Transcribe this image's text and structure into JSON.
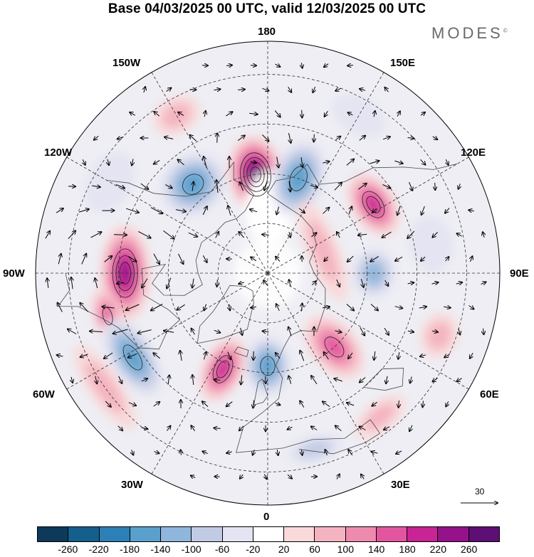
{
  "title": "Base 04/03/2025 00 UTC, valid 12/03/2025 00 UTC",
  "brand": "MODES",
  "brand_mark": "©",
  "longitude_labels": {
    "lon_180": "180",
    "lon_150w": "150W",
    "lon_150e": "150E",
    "lon_120w": "120W",
    "lon_120e": "120E",
    "lon_90w": "90W",
    "lon_90e": "90E",
    "lon_60w": "60W",
    "lon_60e": "60E",
    "lon_30w": "30W",
    "lon_30e": "30E",
    "lon_0": "0"
  },
  "reference_vector_label": "30",
  "colorbar": {
    "colors": [
      "#0d3a5a",
      "#155f8d",
      "#2c80b7",
      "#5aa0cc",
      "#8fb6dc",
      "#c1cbe4",
      "#e4e4f2",
      "#ffffff",
      "#f9d9d9",
      "#f4b3c0",
      "#ef8aaf",
      "#e4559f",
      "#c82495",
      "#96128a",
      "#5d0f75"
    ],
    "ticks": [
      "-260",
      "-220",
      "-180",
      "-140",
      "-100",
      "-60",
      "-20",
      "20",
      "60",
      "100",
      "140",
      "180",
      "220",
      "260"
    ]
  },
  "anomalies": [
    {
      "lon": -173,
      "lat": 60,
      "rx": 38,
      "ry": 55,
      "value": 270
    },
    {
      "lon": 178,
      "lat": 70,
      "rx": 35,
      "ry": 52,
      "value": 10
    },
    {
      "lon": 162,
      "lat": 60,
      "rx": 36,
      "ry": 55,
      "value": -170
    },
    {
      "lon": -140,
      "lat": 55,
      "rx": 48,
      "ry": 42,
      "value": -165
    },
    {
      "lon": 123,
      "lat": 52,
      "rx": 48,
      "ry": 30,
      "value": 190
    },
    {
      "lon": 112,
      "lat": 72,
      "rx": 75,
      "ry": 22,
      "value": 70
    },
    {
      "lon": 90,
      "lat": 58,
      "rx": 35,
      "ry": 30,
      "value": -120
    },
    {
      "lon": -90,
      "lat": 47,
      "rx": 68,
      "ry": 35,
      "value": 230
    },
    {
      "lon": -75,
      "lat": 40,
      "rx": 40,
      "ry": 20,
      "value": 140
    },
    {
      "lon": -58,
      "lat": 42,
      "rx": 62,
      "ry": 30,
      "value": -175
    },
    {
      "lon": -25,
      "lat": 58,
      "rx": 28,
      "ry": 48,
      "value": 190
    },
    {
      "lon": 0,
      "lat": 62,
      "rx": 32,
      "ry": 42,
      "value": -150
    },
    {
      "lon": 42,
      "lat": 60,
      "rx": 32,
      "ry": 52,
      "value": 170
    },
    {
      "lon": 38,
      "lat": 35,
      "rx": 42,
      "ry": 20,
      "value": 80
    },
    {
      "lon": -55,
      "lat": 30,
      "rx": 70,
      "ry": 22,
      "value": 70
    },
    {
      "lon": 70,
      "lat": 35,
      "rx": 32,
      "ry": 26,
      "value": 90
    },
    {
      "lon": -120,
      "lat": 35,
      "rx": 45,
      "ry": 30,
      "value": -50
    },
    {
      "lon": 150,
      "lat": 35,
      "rx": 40,
      "ry": 25,
      "value": -40
    },
    {
      "lon": 100,
      "lat": 40,
      "rx": 40,
      "ry": 30,
      "value": -55
    },
    {
      "lon": 15,
      "lat": 35,
      "rx": 40,
      "ry": 18,
      "value": -60
    },
    {
      "lon": -150,
      "lat": 35,
      "rx": 35,
      "ry": 25,
      "value": 90
    }
  ]
}
